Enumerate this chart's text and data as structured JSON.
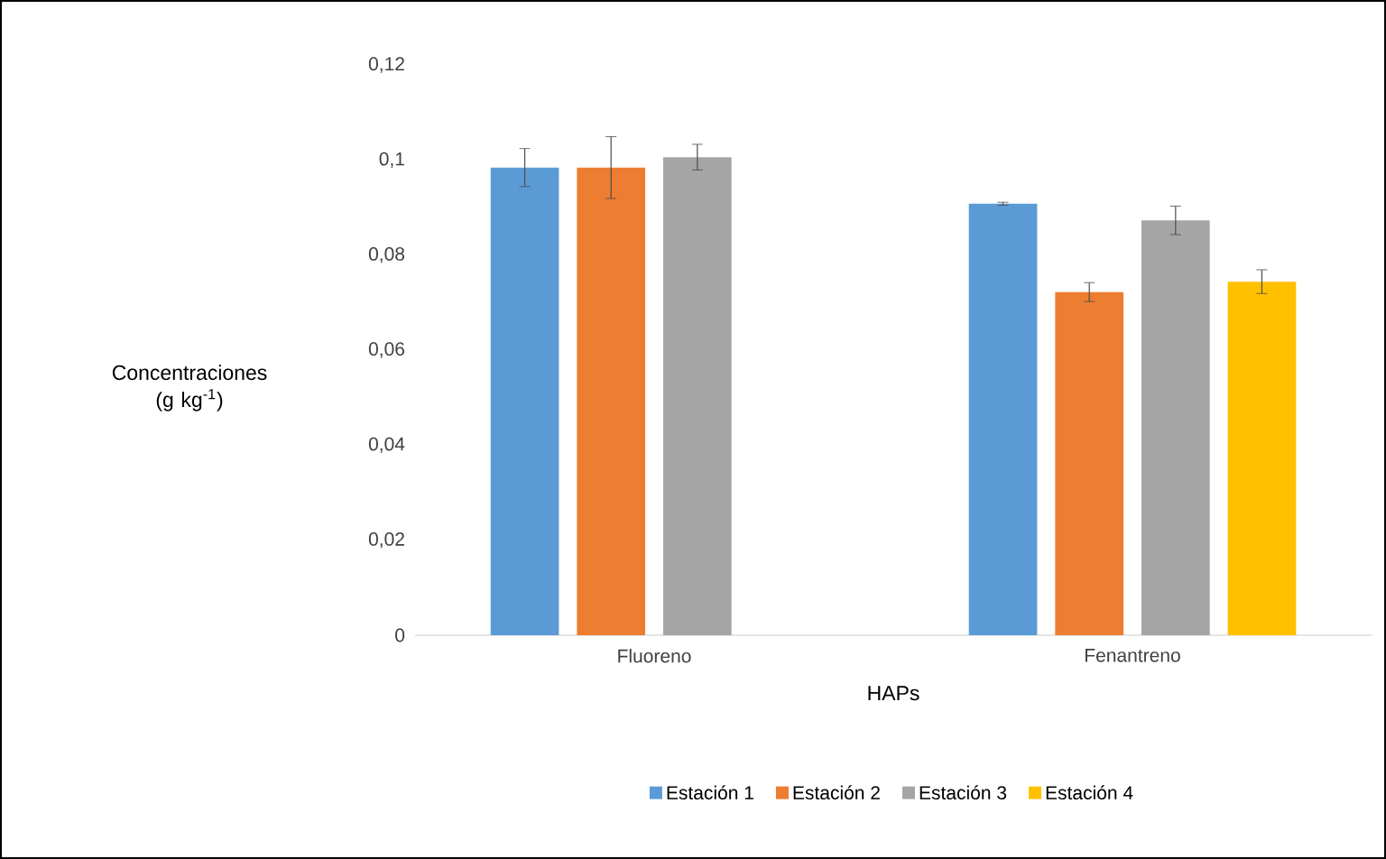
{
  "chart_data": {
    "type": "bar",
    "xlabel": "HAPs",
    "ylabel": "Concentraciones (g kg$^{-1}$)",
    "categories": [
      "Fluoreno",
      "Fenantreno"
    ],
    "series": [
      {
        "name": "Estación 1",
        "color": "#5b9bd5",
        "values": [
          0.0984,
          0.0908
        ],
        "errors": [
          0.004,
          0.0003
        ]
      },
      {
        "name": "Estación 2",
        "color": "#ed7d31",
        "values": [
          0.0984,
          0.0722
        ],
        "errors": [
          0.0065,
          0.002
        ]
      },
      {
        "name": "Estación 3",
        "color": "#a5a5a5",
        "values": [
          0.1006,
          0.0873
        ],
        "errors": [
          0.0027,
          0.003
        ]
      },
      {
        "name": "Estación 4",
        "color": "#ffc000",
        "values": [
          null,
          0.0744
        ],
        "errors": [
          null,
          0.0025
        ]
      }
    ],
    "ylim": [
      0,
      0.12
    ],
    "yticks": [
      {
        "value": 0,
        "label": "0"
      },
      {
        "value": 0.02,
        "label": "0,02"
      },
      {
        "value": 0.04,
        "label": "0,04"
      },
      {
        "value": 0.06,
        "label": "0,06"
      },
      {
        "value": 0.08,
        "label": "0,08"
      },
      {
        "value": 0.1,
        "label": "0,1"
      },
      {
        "value": 0.12,
        "label": "0,12"
      }
    ],
    "legend": "bottom"
  }
}
